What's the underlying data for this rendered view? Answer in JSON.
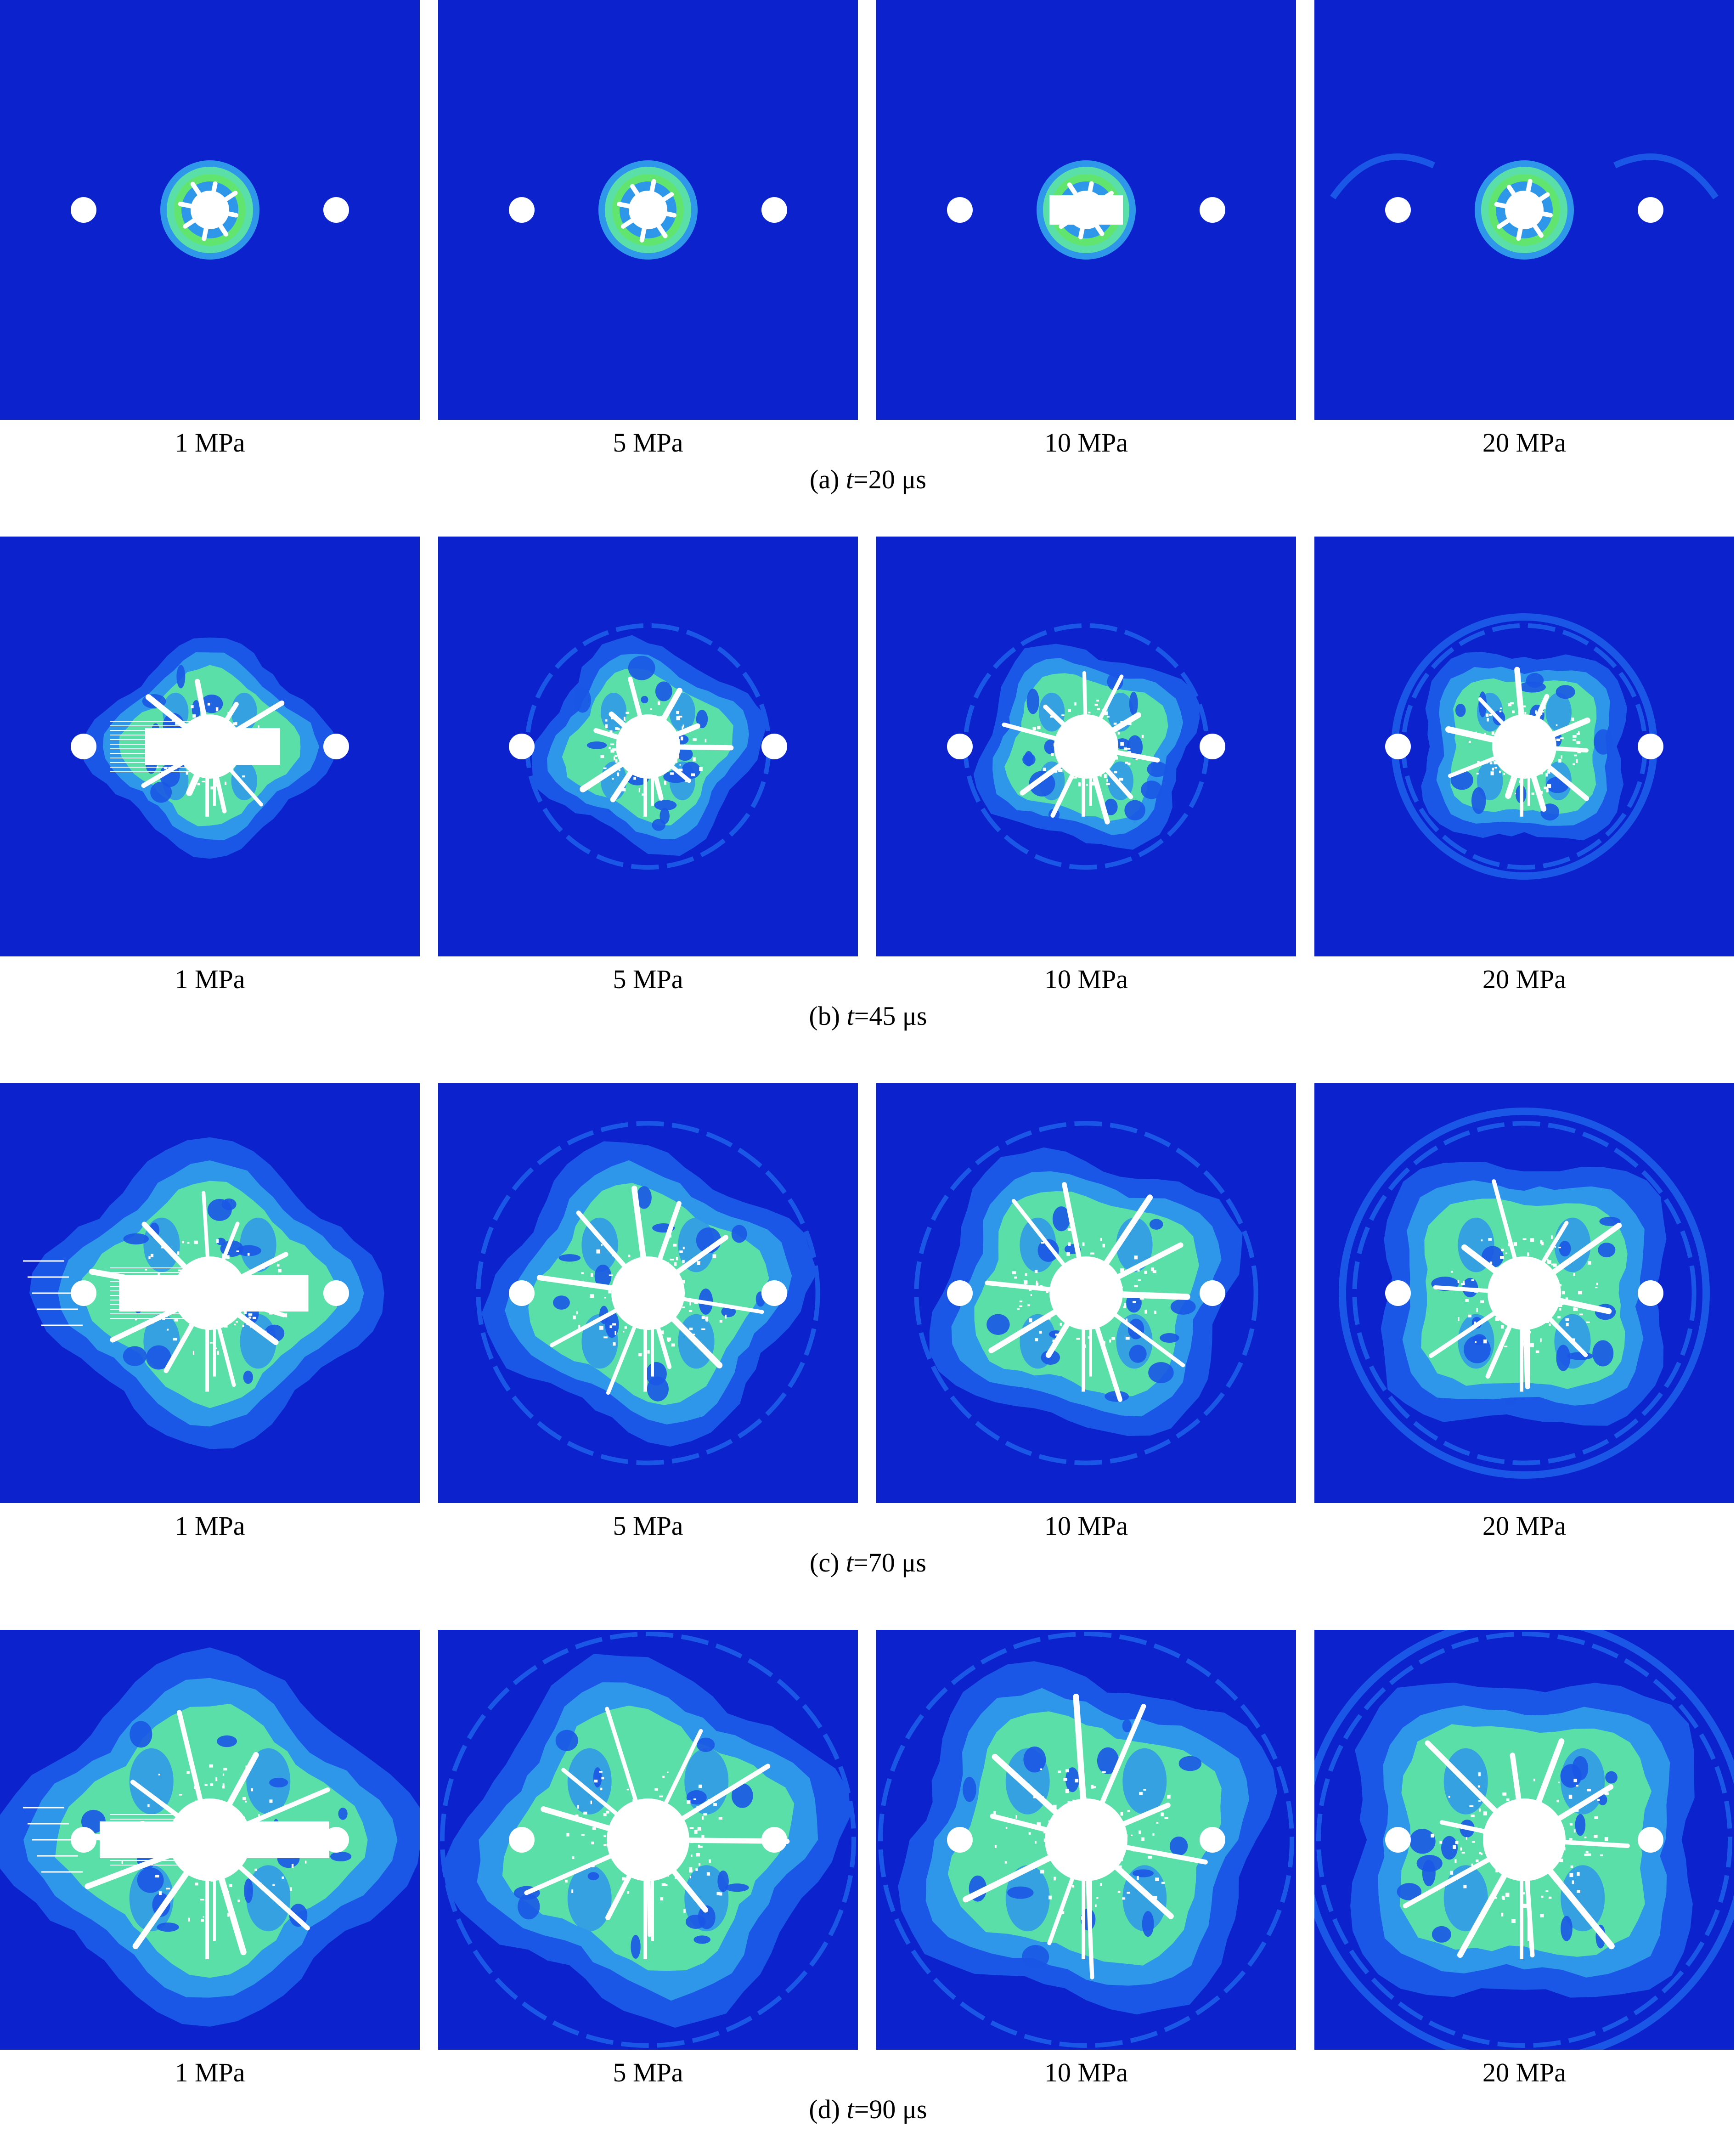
{
  "figure": {
    "colors": {
      "background": "#0b22cc",
      "ring_outer": "#1b57e6",
      "ring_mid": "#2f97ea",
      "ring_light": "#5bdfa8",
      "ring_bright": "#62e56e",
      "fracture": "#ffffff"
    },
    "rows": [
      {
        "id": "a",
        "time_value": "20",
        "caption_prefix": "(a) ",
        "caption_var": "t",
        "caption_suffix": "=20 μs",
        "panels": [
          {
            "label": "1 MPa"
          },
          {
            "label": "5 MPa"
          },
          {
            "label": "10 MPa"
          },
          {
            "label": "20 MPa"
          }
        ]
      },
      {
        "id": "b",
        "time_value": "45",
        "caption_prefix": "(b) ",
        "caption_var": "t",
        "caption_suffix": "=45 μs",
        "panels": [
          {
            "label": "1 MPa"
          },
          {
            "label": "5 MPa"
          },
          {
            "label": "10 MPa"
          },
          {
            "label": "20 MPa"
          }
        ]
      },
      {
        "id": "c",
        "time_value": "70",
        "caption_prefix": "(c) ",
        "caption_var": "t",
        "caption_suffix": "=70 μs",
        "panels": [
          {
            "label": "1 MPa"
          },
          {
            "label": "5 MPa"
          },
          {
            "label": "10 MPa"
          },
          {
            "label": "20 MPa"
          }
        ]
      },
      {
        "id": "d",
        "time_value": "90",
        "caption_prefix": "(d) ",
        "caption_var": "t",
        "caption_suffix": "=90 μs",
        "panels": [
          {
            "label": "1 MPa"
          },
          {
            "label": "5 MPa"
          },
          {
            "label": "10 MPa"
          },
          {
            "label": "20 MPa"
          }
        ]
      }
    ]
  }
}
